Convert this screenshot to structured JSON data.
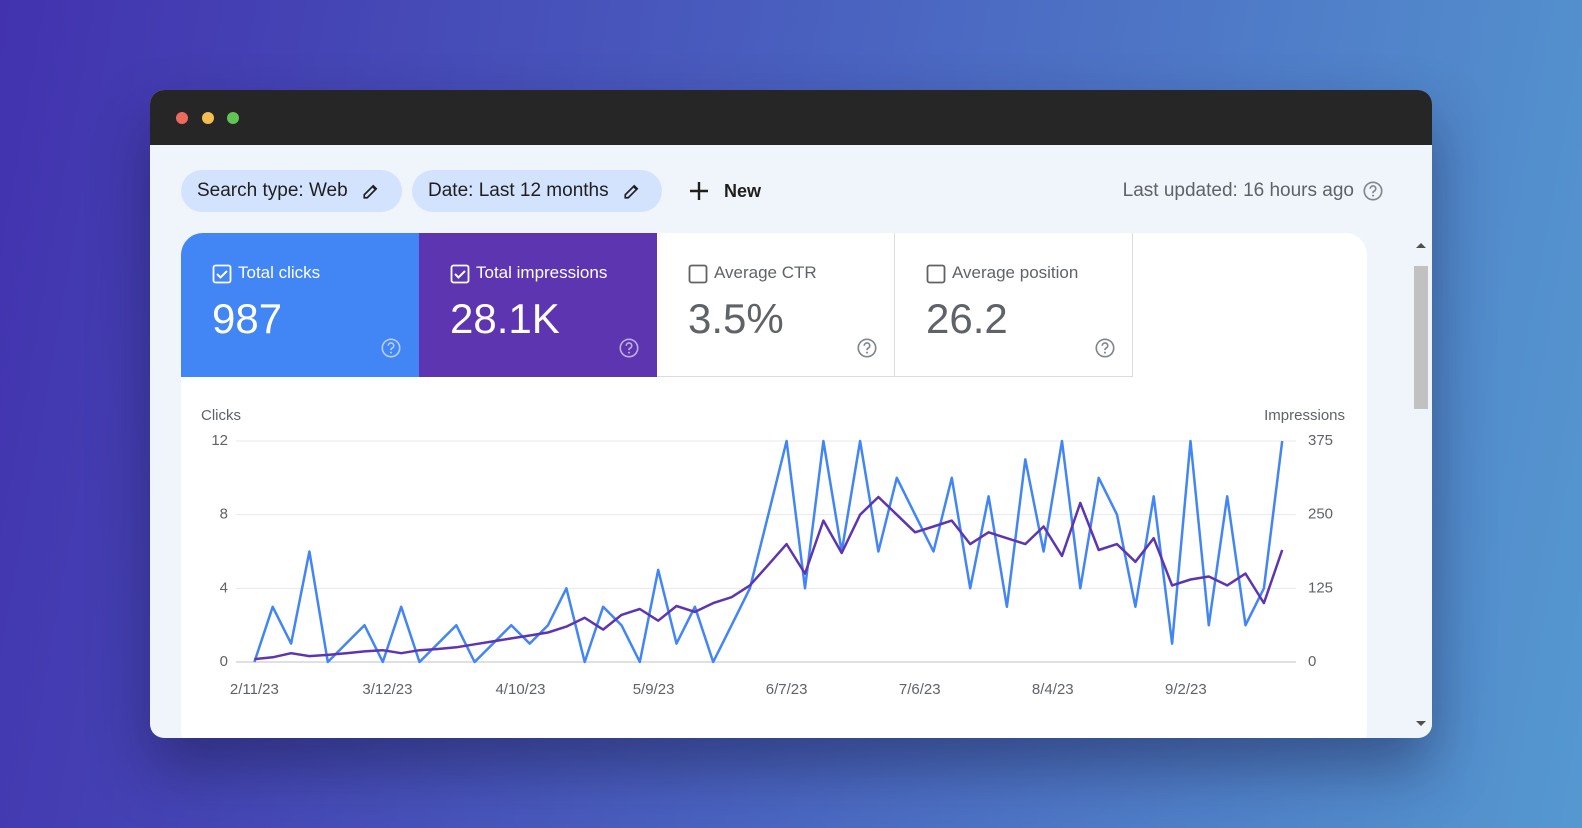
{
  "toolbar": {
    "chips": [
      {
        "label": "Search type: Web"
      },
      {
        "label": "Date: Last 12 months"
      }
    ],
    "new_button": "New",
    "last_updated": "Last updated: 16 hours ago"
  },
  "metrics": [
    {
      "label": "Total clicks",
      "value": "987",
      "checked": true,
      "color": "#4285f4"
    },
    {
      "label": "Total impressions",
      "value": "28.1K",
      "checked": true,
      "color": "#5e35b1"
    },
    {
      "label": "Average CTR",
      "value": "3.5%",
      "checked": false
    },
    {
      "label": "Average position",
      "value": "26.2",
      "checked": false
    }
  ],
  "chart_data": {
    "type": "line",
    "x": [
      "2/11/23",
      "2/15/23",
      "2/19/23",
      "2/23/23",
      "2/27/23",
      "3/3/23",
      "3/7/23",
      "3/11/23",
      "3/15/23",
      "3/19/23",
      "3/23/23",
      "3/27/23",
      "3/31/23",
      "4/4/23",
      "4/8/23",
      "4/12/23",
      "4/16/23",
      "4/20/23",
      "4/24/23",
      "4/28/23",
      "5/2/23",
      "5/6/23",
      "5/10/23",
      "5/14/23",
      "5/18/23",
      "5/22/23",
      "5/26/23",
      "5/30/23",
      "6/3/23",
      "6/7/23",
      "6/11/23",
      "6/15/23",
      "6/19/23",
      "6/23/23",
      "6/27/23",
      "7/1/23",
      "7/5/23",
      "7/9/23",
      "7/13/23",
      "7/17/23",
      "7/21/23",
      "7/25/23",
      "7/29/23",
      "8/2/23",
      "8/6/23",
      "8/10/23",
      "8/14/23",
      "8/18/23",
      "8/22/23",
      "8/26/23",
      "8/30/23",
      "9/3/23",
      "9/7/23",
      "9/11/23",
      "9/15/23",
      "9/19/23",
      "9/23/23"
    ],
    "xlim": [
      "2/7/23",
      "9/26/23"
    ],
    "xticks": [
      "2/11/23",
      "3/12/23",
      "4/10/23",
      "5/9/23",
      "6/7/23",
      "7/6/23",
      "8/4/23",
      "9/2/23"
    ],
    "ylim": [
      0,
      12
    ],
    "yticks": [
      0,
      4,
      8,
      12
    ],
    "y2lim": [
      0,
      375
    ],
    "y2ticks": [
      0,
      125,
      250,
      375
    ],
    "grid": true,
    "series": [
      {
        "name": "Clicks",
        "color": "#4285f4",
        "values": [
          0,
          3,
          1,
          6,
          0,
          1,
          2,
          0,
          3,
          0,
          1,
          2,
          0,
          1,
          2,
          1,
          2,
          4,
          0,
          3,
          2,
          0,
          5,
          1,
          3,
          0,
          2,
          4,
          8,
          12,
          4,
          12,
          6,
          12,
          6,
          10,
          8,
          6,
          10,
          4,
          9,
          3,
          11,
          6,
          12,
          4,
          10,
          8,
          3,
          9,
          1,
          12,
          2,
          9,
          2,
          4,
          12
        ]
      },
      {
        "name": "Impressions",
        "color": "#5e35b1",
        "axis": "y2",
        "values": [
          5,
          8,
          15,
          10,
          12,
          15,
          18,
          20,
          15,
          20,
          22,
          25,
          30,
          35,
          40,
          45,
          50,
          60,
          75,
          55,
          80,
          90,
          70,
          95,
          85,
          100,
          110,
          130,
          165,
          200,
          150,
          240,
          185,
          250,
          280,
          250,
          220,
          230,
          240,
          200,
          220,
          210,
          200,
          230,
          180,
          270,
          190,
          200,
          170,
          210,
          130,
          140,
          145,
          130,
          150,
          100,
          190
        ]
      }
    ]
  }
}
